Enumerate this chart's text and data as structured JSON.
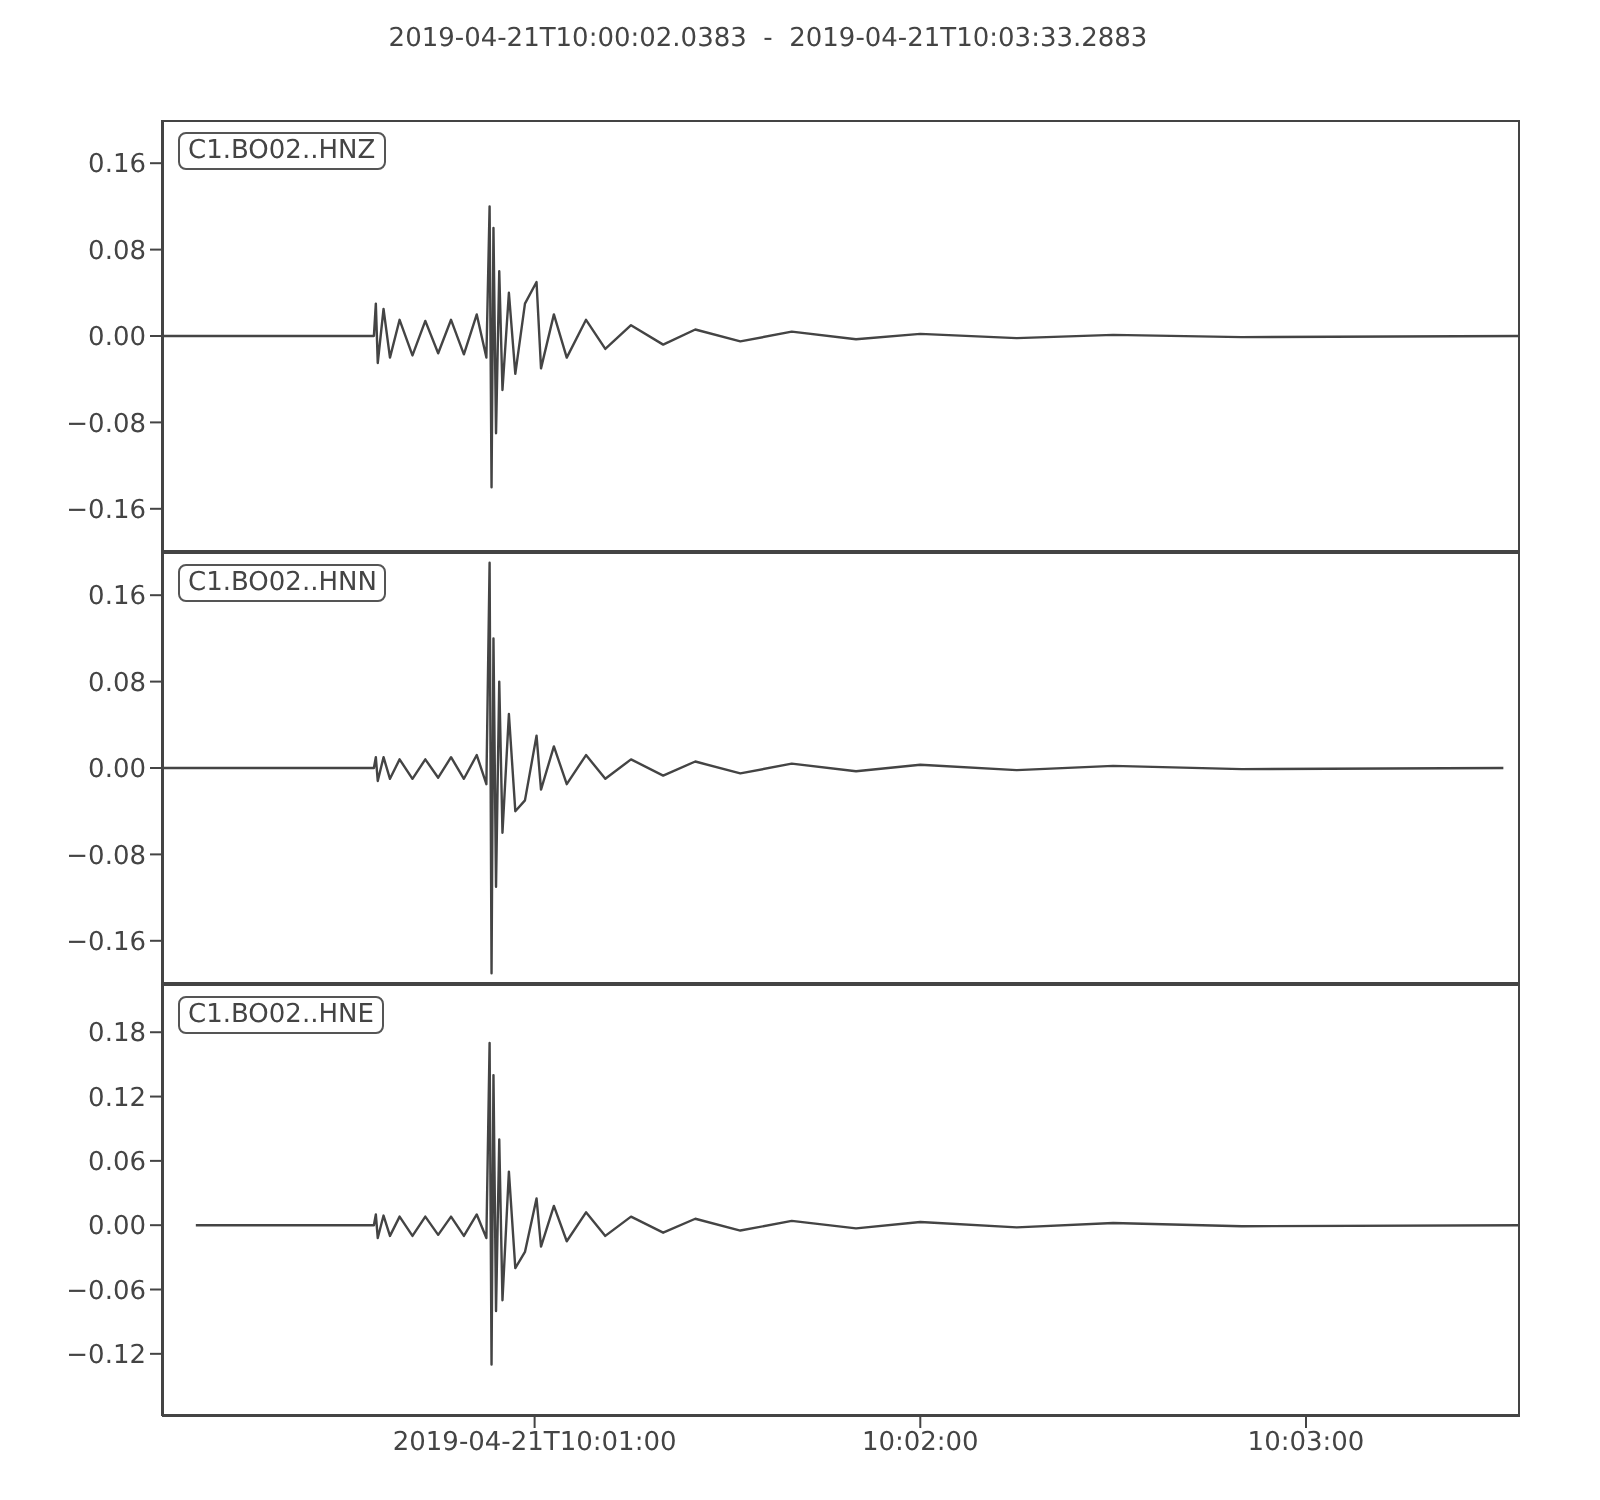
{
  "chart_data": [
    {
      "type": "line",
      "title": "2019-04-21T10:00:02.0383  -  2019-04-21T10:03:33.2883",
      "annotations": [
        "C1.BO02..HNZ"
      ],
      "x": [
        10.000566,
        10.009722,
        10.009806,
        10.009889,
        10.010139,
        10.010417,
        10.010833,
        10.011389,
        10.011944,
        10.0125,
        10.013056,
        10.013611,
        10.014167,
        10.014583,
        10.014722,
        10.014806,
        10.014889,
        10.015,
        10.015139,
        10.015278,
        10.015556,
        10.015833,
        10.01625,
        10.01675,
        10.016944,
        10.0175,
        10.018056,
        10.018889,
        10.019722,
        10.020833,
        10.022222,
        10.023611,
        10.025556,
        10.027778,
        10.030556,
        10.033333,
        10.0375,
        10.041667,
        10.047222,
        10.059247
      ],
      "series": [
        {
          "color": "#444444",
          "values": [
            0,
            0,
            0.03,
            -0.025,
            0.025,
            -0.02,
            0.015,
            -0.018,
            0.014,
            -0.016,
            0.015,
            -0.017,
            0.02,
            -0.02,
            0.12,
            -0.14,
            0.1,
            -0.09,
            0.06,
            -0.05,
            0.04,
            -0.035,
            0.03,
            0.05,
            -0.03,
            0.02,
            -0.02,
            0.015,
            -0.012,
            0.01,
            -0.008,
            0.006,
            -0.005,
            0.004,
            -0.003,
            0.002,
            -0.002,
            0.001,
            -0.001,
            0
          ]
        }
      ],
      "xlim": [
        10.000566,
        10.059247
      ],
      "ylim": [
        -0.2,
        0.2
      ],
      "xticks": [
        {
          "value": 10.016667,
          "label": null
        },
        {
          "value": 10.033333,
          "label": null
        },
        {
          "value": 10.05,
          "label": null
        }
      ],
      "yticks": [
        {
          "value": -0.16,
          "label": "−0.16"
        },
        {
          "value": -0.08,
          "label": "−0.08"
        },
        {
          "value": 0,
          "label": "0.00"
        },
        {
          "value": 0.08,
          "label": "0.08"
        },
        {
          "value": 0.16,
          "label": "0.16"
        }
      ],
      "tick_labels": "y"
    },
    {
      "type": "line",
      "annotations": [
        "C1.BO02..HNN"
      ],
      "x": [
        10.000566,
        10.009722,
        10.009806,
        10.009889,
        10.010139,
        10.010417,
        10.010833,
        10.011389,
        10.011944,
        10.0125,
        10.013056,
        10.013611,
        10.014167,
        10.014583,
        10.014722,
        10.014806,
        10.014889,
        10.015,
        10.015139,
        10.015278,
        10.015556,
        10.015833,
        10.01625,
        10.01675,
        10.016944,
        10.0175,
        10.018056,
        10.018889,
        10.019722,
        10.020833,
        10.022222,
        10.023611,
        10.025556,
        10.027778,
        10.030556,
        10.033333,
        10.0375,
        10.041667,
        10.047222,
        10.058528
      ],
      "series": [
        {
          "color": "#444444",
          "values": [
            0,
            0,
            0.01,
            -0.012,
            0.01,
            -0.01,
            0.008,
            -0.01,
            0.008,
            -0.009,
            0.01,
            -0.01,
            0.012,
            -0.015,
            0.19,
            -0.19,
            0.12,
            -0.11,
            0.08,
            -0.06,
            0.05,
            -0.04,
            -0.03,
            0.03,
            -0.02,
            0.02,
            -0.015,
            0.012,
            -0.01,
            0.008,
            -0.007,
            0.006,
            -0.005,
            0.004,
            -0.003,
            0.003,
            -0.002,
            0.002,
            -0.001,
            0
          ]
        }
      ],
      "xlim": [
        10.000566,
        10.059247
      ],
      "ylim": [
        -0.2,
        0.2
      ],
      "xticks": [
        {
          "value": 10.016667,
          "label": null
        },
        {
          "value": 10.033333,
          "label": null
        },
        {
          "value": 10.05,
          "label": null
        }
      ],
      "yticks": [
        {
          "value": -0.16,
          "label": "−0.16"
        },
        {
          "value": -0.08,
          "label": "−0.08"
        },
        {
          "value": 0,
          "label": "0.00"
        },
        {
          "value": 0.08,
          "label": "0.08"
        },
        {
          "value": 0.16,
          "label": "0.16"
        }
      ],
      "tick_labels": "y"
    },
    {
      "type": "line",
      "annotations": [
        "C1.BO02..HNE"
      ],
      "x": [
        10.002028,
        10.009722,
        10.009806,
        10.009889,
        10.010139,
        10.010417,
        10.010833,
        10.011389,
        10.011944,
        10.0125,
        10.013056,
        10.013611,
        10.014167,
        10.014583,
        10.014722,
        10.014806,
        10.014889,
        10.015,
        10.015139,
        10.015278,
        10.015556,
        10.015833,
        10.01625,
        10.01675,
        10.016944,
        10.0175,
        10.018056,
        10.018889,
        10.019722,
        10.020833,
        10.022222,
        10.023611,
        10.025556,
        10.027778,
        10.030556,
        10.033333,
        10.0375,
        10.041667,
        10.047222,
        10.059247
      ],
      "series": [
        {
          "color": "#444444",
          "values": [
            0,
            0,
            0.01,
            -0.012,
            0.009,
            -0.01,
            0.008,
            -0.01,
            0.008,
            -0.009,
            0.008,
            -0.01,
            0.01,
            -0.012,
            0.17,
            -0.13,
            0.14,
            -0.08,
            0.08,
            -0.07,
            0.05,
            -0.04,
            -0.025,
            0.025,
            -0.02,
            0.018,
            -0.015,
            0.012,
            -0.01,
            0.008,
            -0.007,
            0.006,
            -0.005,
            0.004,
            -0.003,
            0.003,
            -0.002,
            0.002,
            -0.001,
            0
          ]
        }
      ],
      "xlim": [
        10.000566,
        10.059247
      ],
      "ylim": [
        -0.178,
        0.225
      ],
      "xticks": [
        {
          "value": 10.016667,
          "label": "2019-04-21T10:01:00"
        },
        {
          "value": 10.033333,
          "label": "10:02:00"
        },
        {
          "value": 10.05,
          "label": "10:03:00"
        }
      ],
      "yticks": [
        {
          "value": -0.12,
          "label": "−0.12"
        },
        {
          "value": -0.06,
          "label": "−0.06"
        },
        {
          "value": 0,
          "label": "0.00"
        },
        {
          "value": 0.06,
          "label": "0.06"
        },
        {
          "value": 0.12,
          "label": "0.12"
        },
        {
          "value": 0.18,
          "label": "0.18"
        }
      ]
    }
  ]
}
